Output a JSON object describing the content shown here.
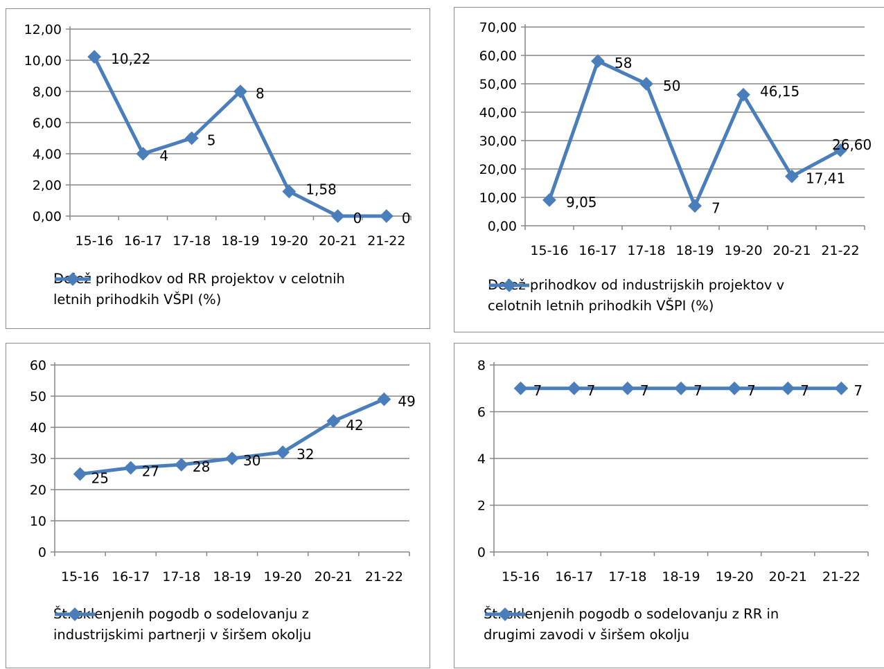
{
  "colors": {
    "series": "#4a7ebb",
    "axis": "#868686",
    "grid": "#868686"
  },
  "chart_data": [
    {
      "type": "line",
      "categories": [
        "15-16",
        "16-17",
        "17-18",
        "18-19",
        "19-20",
        "20-21",
        "21-22"
      ],
      "series": [
        {
          "name": "Delež prihodkov od RR projektov v celotnih letnih prihodkih VŠPI (%)",
          "values": [
            10.22,
            4,
            5,
            8,
            1.58,
            0,
            0
          ]
        }
      ],
      "data_labels": [
        "10,22",
        "4",
        "5",
        "8",
        "1,58",
        "0",
        "0"
      ],
      "yticks": [
        "0,00",
        "2,00",
        "4,00",
        "6,00",
        "8,00",
        "10,00",
        "12,00"
      ],
      "ylim": [
        0,
        12
      ],
      "legend_lines": [
        "Delež prihodkov od RR projektov v celotnih",
        "letnih prihodkih VŠPI (%)"
      ],
      "legend_position": "bottom",
      "grid": true
    },
    {
      "type": "line",
      "categories": [
        "15-16",
        "16-17",
        "17-18",
        "18-19",
        "19-20",
        "20-21",
        "21-22"
      ],
      "series": [
        {
          "name": "Delež prihodkov od industrijskih projektov v celotnih letnih prihodkih VŠPI (%)",
          "values": [
            9.05,
            58,
            50,
            7,
            46.15,
            17.41,
            26.6
          ]
        }
      ],
      "data_labels": [
        "9,05",
        "58",
        "50",
        "7",
        "46,15",
        "17,41",
        "26,60"
      ],
      "yticks": [
        "0,00",
        "10,00",
        "20,00",
        "30,00",
        "40,00",
        "50,00",
        "60,00",
        "70,00"
      ],
      "ylim": [
        0,
        70
      ],
      "legend_lines": [
        "Delež prihodkov od industrijskih projektov v",
        "celotnih letnih prihodkih VŠPI (%)"
      ],
      "legend_position": "bottom",
      "grid": true
    },
    {
      "type": "line",
      "categories": [
        "15-16",
        "16-17",
        "17-18",
        "18-19",
        "19-20",
        "20-21",
        "21-22"
      ],
      "series": [
        {
          "name": "Št. sklenjenih pogodb o sodelovanju z industrijskimi partnerji v širšem okolju",
          "values": [
            25,
            27,
            28,
            30,
            32,
            42,
            49
          ]
        }
      ],
      "data_labels": [
        "25",
        "27",
        "28",
        "30",
        "32",
        "42",
        "49"
      ],
      "yticks": [
        "0",
        "10",
        "20",
        "30",
        "40",
        "50",
        "60"
      ],
      "ylim": [
        0,
        60
      ],
      "legend_lines": [
        "Št. sklenjenih pogodb  o sodelovanju z",
        "industrijskimi partnerji  v širšem okolju"
      ],
      "legend_position": "bottom",
      "grid": true
    },
    {
      "type": "line",
      "categories": [
        "15-16",
        "16-17",
        "17-18",
        "18-19",
        "19-20",
        "20-21",
        "21-22"
      ],
      "series": [
        {
          "name": "Št. sklenjenih pogodb o sodelovanju z RR in drugimi zavodi v širšem okolju",
          "values": [
            7,
            7,
            7,
            7,
            7,
            7,
            7
          ]
        }
      ],
      "data_labels": [
        "7",
        "7",
        "7",
        "7",
        "7",
        "7",
        "7"
      ],
      "yticks": [
        "0",
        "2",
        "4",
        "6",
        "8"
      ],
      "ylim": [
        0,
        8
      ],
      "legend_lines": [
        "Št. sklenjenih pogodb  o sodelovanju z RR in",
        "drugimi zavodi v širšem okolju"
      ],
      "legend_position": "bottom",
      "grid": true
    }
  ]
}
